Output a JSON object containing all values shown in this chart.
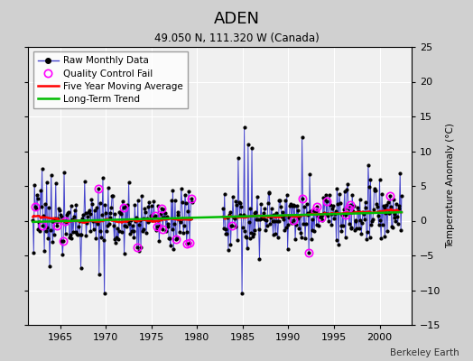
{
  "title": "ADEN",
  "subtitle": "49.050 N, 111.320 W (Canada)",
  "ylabel": "Temperature Anomaly (°C)",
  "credit": "Berkeley Earth",
  "xlim": [
    1961.5,
    2003.5
  ],
  "ylim": [
    -15,
    25
  ],
  "yticks": [
    -15,
    -10,
    -5,
    0,
    5,
    10,
    15,
    20,
    25
  ],
  "xticks": [
    1965,
    1970,
    1975,
    1980,
    1985,
    1990,
    1995,
    2000
  ],
  "plot_bg": "#f0f0f0",
  "fig_bg": "#d0d0d0",
  "grid_color": "#ffffff",
  "line_color": "#4444cc",
  "ma_color": "#ff0000",
  "trend_color": "#00bb00",
  "dot_color": "#000000",
  "qc_color": "#ff00ff",
  "seed": 17
}
